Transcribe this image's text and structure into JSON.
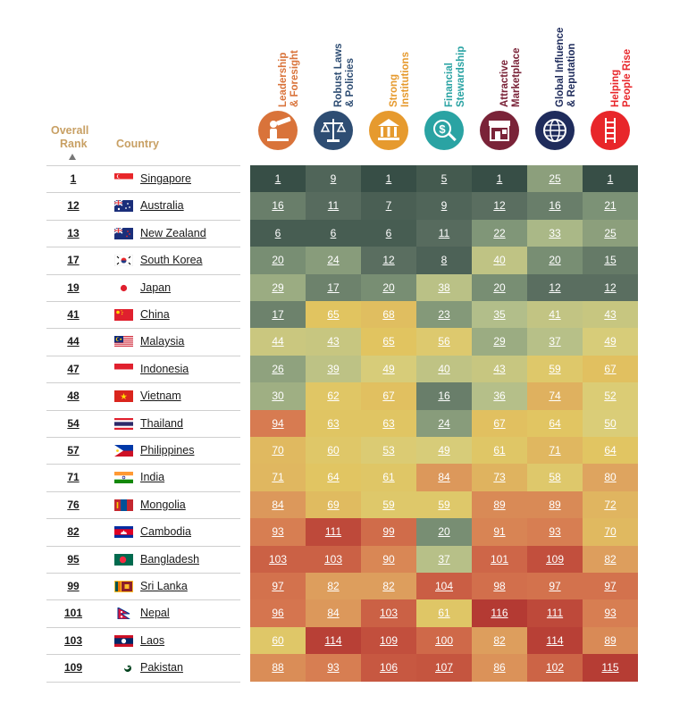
{
  "header": {
    "overall_rank_line1": "Overall",
    "overall_rank_line2": "Rank",
    "country_label": "Country"
  },
  "colors": {
    "leadership": "#d9733a",
    "laws": "#2e4d73",
    "institutions": "#e69a2e",
    "financial": "#2aa3a3",
    "marketplace": "#7a2338",
    "global": "#1f2c5c",
    "people": "#e8262a"
  },
  "chart_data": {
    "type": "table",
    "title": "",
    "pillars": [
      {
        "name": "Leadership & Foresight",
        "label_line1": "Leadership",
        "label_line2": "& Foresight",
        "color": "#d9733a",
        "icon": "person-telescope-icon"
      },
      {
        "name": "Robust Laws & Policies",
        "label_line1": "Robust Laws",
        "label_line2": "& Policies",
        "color": "#2e4d73",
        "icon": "scales-icon"
      },
      {
        "name": "Strong Institutions",
        "label_line1": "Strong",
        "label_line2": "Institutions",
        "color": "#e69a2e",
        "icon": "institution-building-icon"
      },
      {
        "name": "Financial Stewardship",
        "label_line1": "Financial",
        "label_line2": "Stewardship",
        "color": "#2aa3a3",
        "icon": "coin-magnifier-icon"
      },
      {
        "name": "Attractive Marketplace",
        "label_line1": "Attractive",
        "label_line2": "Marketplace",
        "color": "#7a2338",
        "icon": "storefront-icon"
      },
      {
        "name": "Global Influence & Reputation",
        "label_line1": "Global Influence",
        "label_line2": "& Reputation",
        "color": "#1f2c5c",
        "icon": "globe-icon"
      },
      {
        "name": "Helping People Rise",
        "label_line1": "Helping",
        "label_line2": "People Rise",
        "color": "#e8262a",
        "icon": "ladder-icon"
      }
    ],
    "rows": [
      {
        "rank": "1",
        "country": "Singapore",
        "flag": "sg",
        "values": [
          1,
          9,
          1,
          5,
          1,
          25,
          1
        ]
      },
      {
        "rank": "12",
        "country": "Australia",
        "flag": "au",
        "values": [
          16,
          11,
          7,
          9,
          12,
          16,
          21
        ]
      },
      {
        "rank": "13",
        "country": "New Zealand",
        "flag": "nz",
        "values": [
          6,
          6,
          6,
          11,
          22,
          33,
          25
        ]
      },
      {
        "rank": "17",
        "country": "South Korea",
        "flag": "kr",
        "values": [
          20,
          24,
          12,
          8,
          40,
          20,
          15
        ]
      },
      {
        "rank": "19",
        "country": "Japan",
        "flag": "jp",
        "values": [
          29,
          17,
          20,
          38,
          20,
          12,
          12
        ]
      },
      {
        "rank": "41",
        "country": "China",
        "flag": "cn",
        "values": [
          17,
          65,
          68,
          23,
          35,
          41,
          43
        ]
      },
      {
        "rank": "44",
        "country": "Malaysia",
        "flag": "my",
        "values": [
          44,
          43,
          65,
          56,
          29,
          37,
          49
        ]
      },
      {
        "rank": "47",
        "country": "Indonesia",
        "flag": "id",
        "values": [
          26,
          39,
          49,
          40,
          43,
          59,
          67
        ]
      },
      {
        "rank": "48",
        "country": "Vietnam",
        "flag": "vn",
        "values": [
          30,
          62,
          67,
          16,
          36,
          74,
          52
        ]
      },
      {
        "rank": "54",
        "country": "Thailand",
        "flag": "th",
        "values": [
          94,
          63,
          63,
          24,
          67,
          64,
          50
        ]
      },
      {
        "rank": "57",
        "country": "Philippines",
        "flag": "ph",
        "values": [
          70,
          60,
          53,
          49,
          61,
          71,
          64
        ]
      },
      {
        "rank": "71",
        "country": "India",
        "flag": "in",
        "values": [
          71,
          64,
          61,
          84,
          73,
          58,
          80
        ]
      },
      {
        "rank": "76",
        "country": "Mongolia",
        "flag": "mn",
        "values": [
          84,
          69,
          59,
          59,
          89,
          89,
          72
        ]
      },
      {
        "rank": "82",
        "country": "Cambodia",
        "flag": "kh",
        "values": [
          93,
          111,
          99,
          20,
          91,
          93,
          70
        ]
      },
      {
        "rank": "95",
        "country": "Bangladesh",
        "flag": "bd",
        "values": [
          103,
          103,
          90,
          37,
          101,
          109,
          82
        ]
      },
      {
        "rank": "99",
        "country": "Sri Lanka",
        "flag": "lk",
        "values": [
          97,
          82,
          82,
          104,
          98,
          97,
          97
        ]
      },
      {
        "rank": "101",
        "country": "Nepal",
        "flag": "np",
        "values": [
          96,
          84,
          103,
          61,
          116,
          111,
          93
        ]
      },
      {
        "rank": "103",
        "country": "Laos",
        "flag": "la",
        "values": [
          60,
          114,
          109,
          100,
          82,
          114,
          89
        ]
      },
      {
        "rank": "109",
        "country": "Pakistan",
        "flag": "pk",
        "values": [
          88,
          93,
          106,
          107,
          86,
          102,
          115
        ]
      }
    ]
  }
}
